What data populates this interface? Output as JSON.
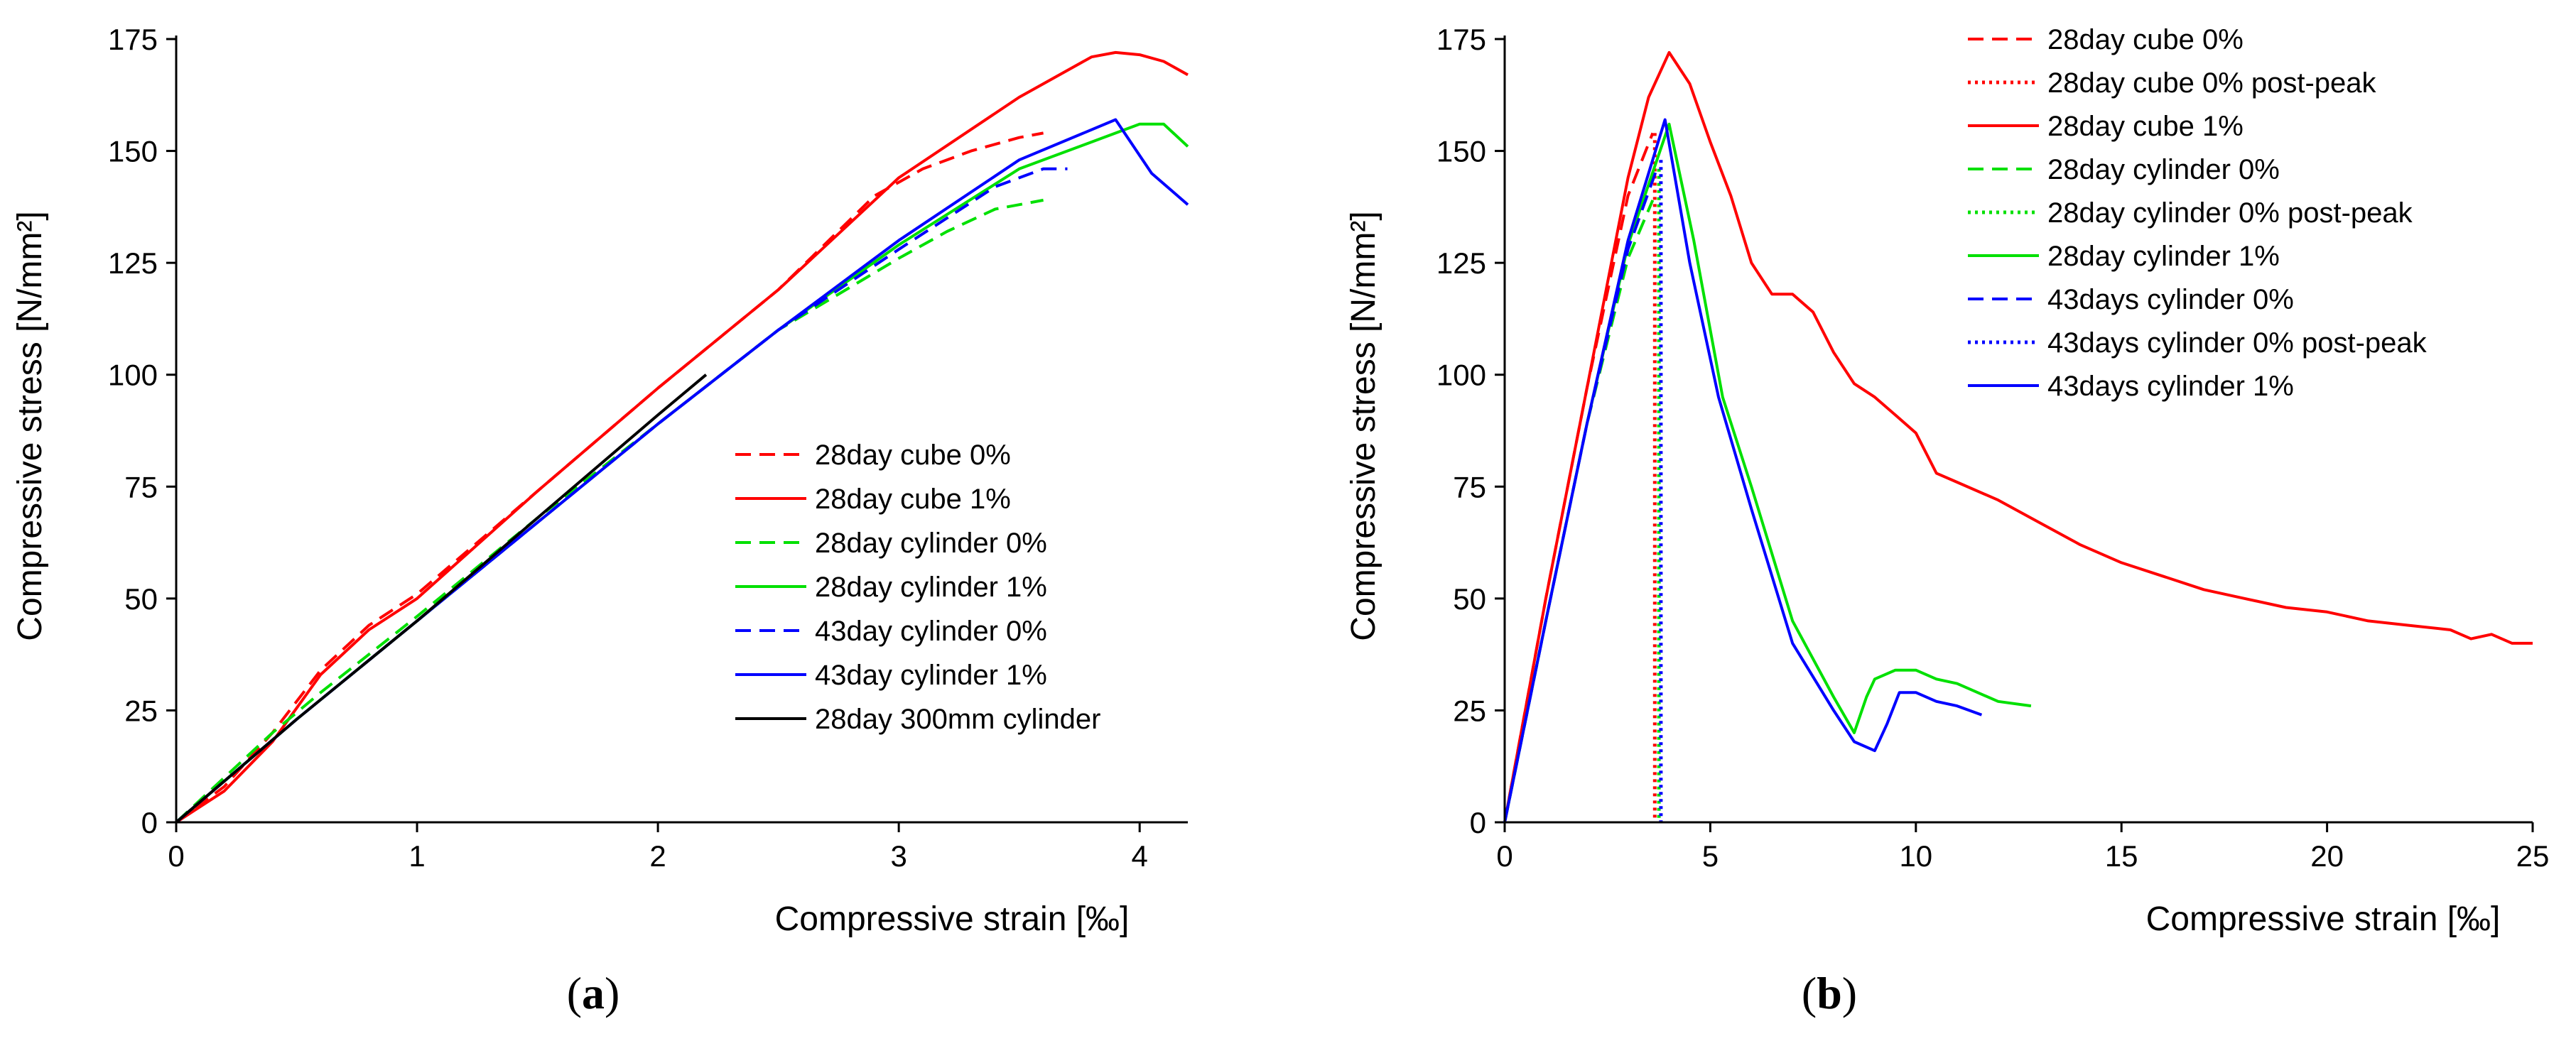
{
  "chart_data": [
    {
      "type": "line",
      "panel": "a",
      "xlabel": "Compressive strain [‰]",
      "ylabel": "Compressive stress [N/mm²]",
      "xlim": [
        0,
        4.2
      ],
      "ylim": [
        0,
        175
      ],
      "xticks": [
        0,
        1,
        2,
        3,
        4
      ],
      "yticks": [
        0,
        25,
        50,
        75,
        100,
        125,
        150,
        175
      ],
      "legend_position": "center-right",
      "series": [
        {
          "name": "28day cube 0%",
          "color": "#ff0000",
          "dash": "dashed",
          "x": [
            0,
            0.2,
            0.4,
            0.6,
            0.8,
            1.0,
            1.5,
            2.0,
            2.5,
            2.9,
            3.1,
            3.3,
            3.5,
            3.6
          ],
          "y": [
            0,
            8,
            20,
            34,
            44,
            51,
            74,
            97,
            119,
            140,
            146,
            150,
            153,
            154
          ]
        },
        {
          "name": "28day cube 1%",
          "color": "#ff0000",
          "dash": "solid",
          "x": [
            0,
            0.2,
            0.4,
            0.6,
            0.8,
            1.0,
            1.5,
            2.0,
            2.5,
            3.0,
            3.5,
            3.8,
            3.9,
            4.0,
            4.1,
            4.2
          ],
          "y": [
            0,
            7,
            18,
            33,
            43,
            50,
            74,
            97,
            119,
            144,
            162,
            171,
            172,
            171.5,
            170,
            167
          ]
        },
        {
          "name": "28day cylinder 0%",
          "color": "#00e000",
          "dash": "dashed",
          "x": [
            0,
            0.2,
            0.4,
            0.6,
            1.0,
            1.5,
            2.0,
            2.5,
            3.0,
            3.2,
            3.4,
            3.6
          ],
          "y": [
            0,
            10,
            20,
            29,
            46,
            68,
            89,
            110,
            126,
            132,
            137,
            139
          ]
        },
        {
          "name": "28day cylinder 1%",
          "color": "#00e000",
          "dash": "solid",
          "x": [
            0,
            0.5,
            1.0,
            1.5,
            2.0,
            2.5,
            3.0,
            3.5,
            4.0,
            4.1,
            4.2
          ],
          "y": [
            0,
            23,
            45,
            67,
            89,
            110,
            129,
            146,
            156,
            156,
            151
          ]
        },
        {
          "name": "43day cylinder 0%",
          "color": "#0000ff",
          "dash": "dashed",
          "x": [
            0,
            0.5,
            1.0,
            1.5,
            2.0,
            2.5,
            3.0,
            3.2,
            3.4,
            3.6,
            3.7
          ],
          "y": [
            0,
            23,
            45,
            67,
            89,
            110,
            128,
            135,
            142,
            146,
            146
          ]
        },
        {
          "name": "43day cylinder 1%",
          "color": "#0000ff",
          "dash": "solid",
          "x": [
            0,
            0.5,
            1.0,
            1.5,
            2.0,
            2.5,
            3.0,
            3.5,
            3.9,
            4.05,
            4.2
          ],
          "y": [
            0,
            23,
            45,
            67,
            89,
            110,
            130,
            148,
            157,
            145,
            138
          ]
        },
        {
          "name": "28day 300mm cylinder",
          "color": "#000000",
          "dash": "solid",
          "x": [
            0,
            0.5,
            1.0,
            1.5,
            2.0,
            2.2
          ],
          "y": [
            0,
            23,
            45,
            68,
            91,
            100
          ]
        }
      ]
    },
    {
      "type": "line",
      "panel": "b",
      "xlabel": "Compressive strain [‰]",
      "ylabel": "Compressive stress [N/mm²]",
      "xlim": [
        0,
        25
      ],
      "ylim": [
        0,
        175
      ],
      "xticks": [
        0,
        5,
        10,
        15,
        20,
        25
      ],
      "yticks": [
        0,
        25,
        50,
        75,
        100,
        125,
        150,
        175
      ],
      "legend_position": "top-right",
      "series": [
        {
          "name": "28day cube 0%",
          "color": "#ff0000",
          "dash": "dashed",
          "x": [
            0,
            1,
            2,
            3,
            3.6
          ],
          "y": [
            0,
            50,
            97,
            140,
            154
          ]
        },
        {
          "name": "28day cube 0% post-peak",
          "color": "#ff0000",
          "dash": "dotted",
          "x": [
            3.65,
            3.65
          ],
          "y": [
            154,
            0
          ]
        },
        {
          "name": "28day cube 1%",
          "color": "#ff0000",
          "dash": "solid",
          "x": [
            0,
            1,
            2,
            3,
            3.5,
            4.0,
            4.5,
            5.0,
            5.5,
            6.0,
            6.5,
            7.0,
            7.5,
            8.0,
            8.5,
            9.0,
            9.5,
            10.0,
            10.5,
            11.0,
            12.0,
            13.0,
            14.0,
            15.0,
            16.0,
            17.0,
            18.0,
            19.0,
            20.0,
            21.0,
            22.0,
            23.0,
            23.5,
            24.0,
            24.5,
            25.0
          ],
          "y": [
            0,
            50,
            97,
            144,
            162,
            172,
            165,
            152,
            140,
            125,
            118,
            118,
            114,
            105,
            98,
            95,
            91,
            87,
            78,
            76,
            72,
            67,
            62,
            58,
            55,
            52,
            50,
            48,
            47,
            45,
            44,
            43,
            41,
            42,
            40,
            40
          ]
        },
        {
          "name": "28day cylinder 0%",
          "color": "#00e000",
          "dash": "dashed",
          "x": [
            0,
            1,
            2,
            3,
            3.6
          ],
          "y": [
            0,
            45,
            89,
            126,
            139
          ]
        },
        {
          "name": "28day cylinder 0% post-peak",
          "color": "#00e000",
          "dash": "dotted",
          "x": [
            3.75,
            3.75
          ],
          "y": [
            146,
            0
          ]
        },
        {
          "name": "28day cylinder 1%",
          "color": "#00e000",
          "dash": "solid",
          "x": [
            0,
            1,
            2,
            3,
            4.0,
            4.6,
            5.3,
            6.0,
            7.0,
            8.0,
            8.5,
            8.8,
            9.0,
            9.5,
            10.0,
            10.5,
            11.0,
            11.5,
            12.0,
            12.8
          ],
          "y": [
            0,
            45,
            89,
            129,
            156,
            130,
            95,
            75,
            45,
            28,
            20,
            28,
            32,
            34,
            34,
            32,
            31,
            29,
            27,
            26
          ]
        },
        {
          "name": "43days cylinder 0%",
          "color": "#0000ff",
          "dash": "dashed",
          "x": [
            0,
            1,
            2,
            3,
            3.7
          ],
          "y": [
            0,
            45,
            89,
            128,
            146
          ]
        },
        {
          "name": "43days cylinder 0% post-peak",
          "color": "#0000ff",
          "dash": "dotted",
          "x": [
            3.8,
            3.8
          ],
          "y": [
            148,
            0
          ]
        },
        {
          "name": "43days cylinder 1%",
          "color": "#0000ff",
          "dash": "solid",
          "x": [
            0,
            1,
            2,
            3,
            3.9,
            4.5,
            5.2,
            6.0,
            7.0,
            8.0,
            8.5,
            9.0,
            9.3,
            9.6,
            10.0,
            10.5,
            11.0,
            11.6
          ],
          "y": [
            0,
            45,
            89,
            130,
            157,
            125,
            95,
            70,
            40,
            25,
            18,
            16,
            22,
            29,
            29,
            27,
            26,
            24
          ]
        }
      ]
    }
  ],
  "panel_labels": {
    "a_open": "(",
    "a_letter": "a",
    "a_close": ")",
    "b_open": "(",
    "b_letter": "b",
    "b_close": ")"
  }
}
